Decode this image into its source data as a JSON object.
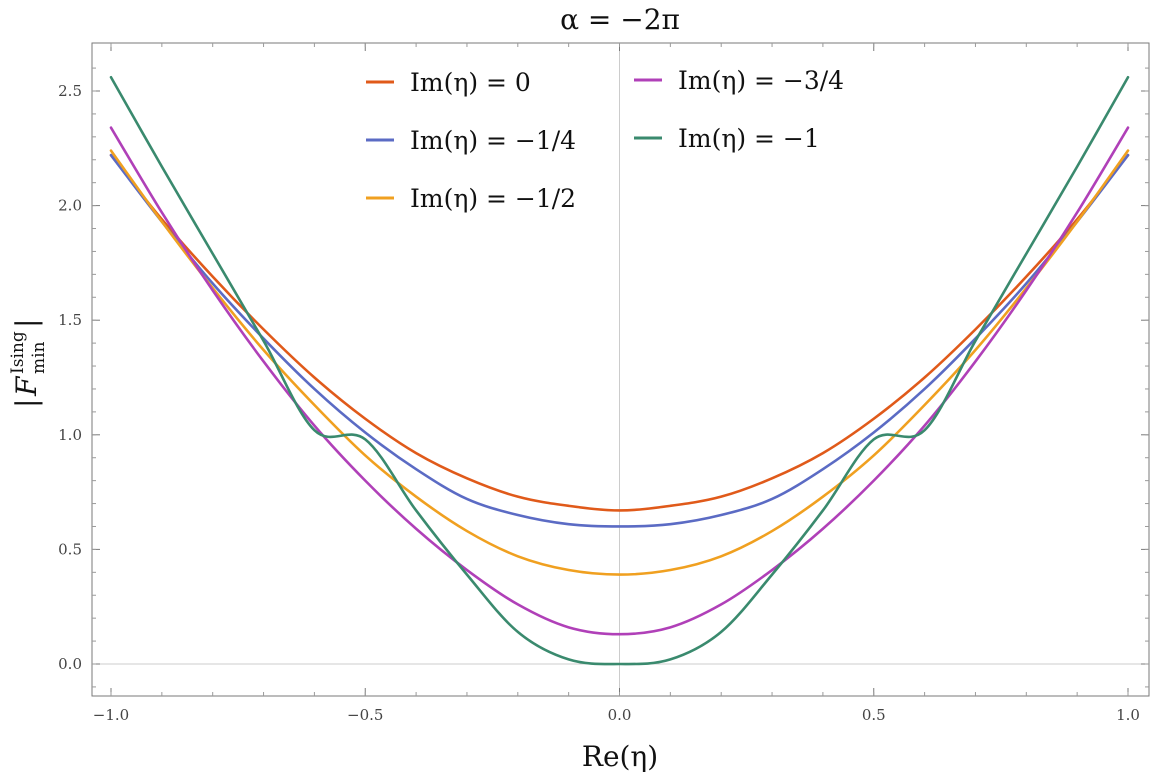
{
  "chart_data": {
    "type": "line",
    "title": "α = −2π",
    "xlabel": "Re(η)",
    "ylabel": {
      "left_bar": "|",
      "base": "F",
      "superscript": "Ising",
      "subscript": "min",
      "right_bar": "|"
    },
    "xlim": [
      -1.0,
      1.0
    ],
    "ylim": [
      -0.14,
      2.7
    ],
    "x_ticks": [
      "-1.0",
      "-0.5",
      "0.0",
      "0.5",
      "1.0"
    ],
    "y_ticks": [
      "0.0",
      "0.5",
      "1.0",
      "1.5",
      "2.0",
      "2.5"
    ],
    "x_tick_labels": [
      "−1.0",
      "−0.5",
      "0.0",
      "0.5",
      "1.0"
    ],
    "y_tick_labels": [
      "0.0",
      "0.5",
      "1.0",
      "1.5",
      "2.0",
      "2.5"
    ],
    "grid": false,
    "reference_lines": {
      "x": 0.0,
      "y": 0.0
    },
    "legend_position": "top-center",
    "x": [
      -1.0,
      -0.9,
      -0.8,
      -0.7,
      -0.6,
      -0.5,
      -0.4,
      -0.3,
      -0.2,
      -0.1,
      0.0,
      0.1,
      0.2,
      0.3,
      0.4,
      0.5,
      0.6,
      0.7,
      0.8,
      0.9,
      1.0
    ],
    "series": [
      {
        "name": "Im(η) = 0",
        "color": "#e05a1a",
        "values": [
          2.22,
          1.94,
          1.69,
          1.46,
          1.25,
          1.07,
          0.92,
          0.81,
          0.73,
          0.69,
          0.67,
          0.69,
          0.73,
          0.81,
          0.92,
          1.07,
          1.25,
          1.46,
          1.69,
          1.94,
          2.22
        ]
      },
      {
        "name": "Im(η) = −1/4",
        "color": "#5b6bc4",
        "values": [
          2.22,
          1.93,
          1.66,
          1.42,
          1.2,
          1.01,
          0.85,
          0.72,
          0.65,
          0.61,
          0.6,
          0.61,
          0.65,
          0.72,
          0.85,
          1.01,
          1.2,
          1.42,
          1.66,
          1.93,
          2.22
        ]
      },
      {
        "name": "Im(η) = −1/2",
        "color": "#f0a020",
        "values": [
          2.24,
          1.93,
          1.64,
          1.37,
          1.13,
          0.91,
          0.73,
          0.58,
          0.47,
          0.41,
          0.39,
          0.41,
          0.47,
          0.58,
          0.73,
          0.91,
          1.13,
          1.37,
          1.64,
          1.93,
          2.24
        ]
      },
      {
        "name": "Im(η) = −3/4",
        "color": "#b040b8",
        "values": [
          2.34,
          1.97,
          1.63,
          1.32,
          1.04,
          0.8,
          0.59,
          0.41,
          0.26,
          0.16,
          0.13,
          0.16,
          0.26,
          0.41,
          0.59,
          0.8,
          1.04,
          1.32,
          1.63,
          1.97,
          2.34
        ]
      },
      {
        "name": "Im(η) = −1",
        "color": "#3a8a6e",
        "values": [
          2.56,
          2.17,
          1.79,
          1.41,
          1.02,
          0.98,
          0.67,
          0.39,
          0.14,
          0.02,
          0.0,
          0.02,
          0.14,
          0.39,
          0.67,
          0.98,
          1.02,
          1.41,
          1.79,
          2.17,
          2.56
        ]
      }
    ]
  }
}
